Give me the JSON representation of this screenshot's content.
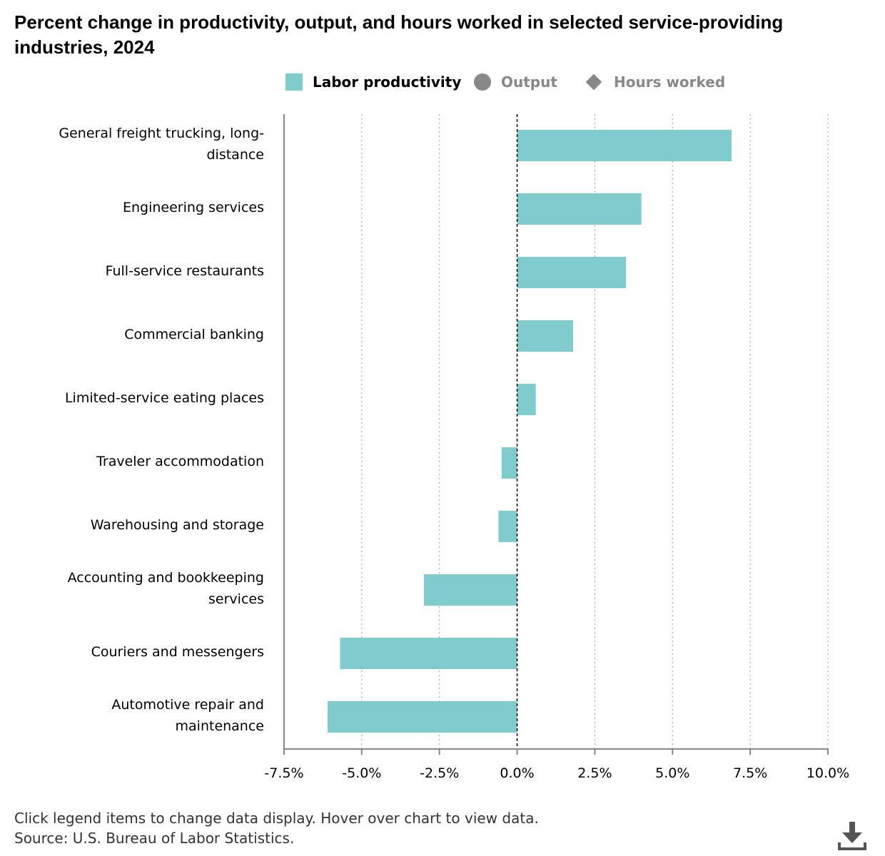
{
  "title": "Percent change in productivity, output, and hours worked in selected service-providing industries, 2024",
  "legend": [
    {
      "label": "Labor productivity",
      "icon": "square",
      "color": "#80cccc",
      "active": true
    },
    {
      "label": "Output",
      "icon": "circle",
      "color": "#888888",
      "active": false
    },
    {
      "label": "Hours worked",
      "icon": "diamond",
      "color": "#888888",
      "active": false
    }
  ],
  "chart_data": {
    "type": "bar",
    "orientation": "horizontal",
    "title": "Percent change in productivity, output, and hours worked in selected service-providing industries, 2024",
    "categories": [
      "General freight trucking, long-distance",
      "Engineering services",
      "Full-service restaurants",
      "Commercial banking",
      "Limited-service eating places",
      "Traveler accommodation",
      "Warehousing and storage",
      "Accounting and bookkeeping services",
      "Couriers and messengers",
      "Automotive repair and maintenance"
    ],
    "category_lines": [
      [
        "General freight trucking, long-",
        "distance"
      ],
      [
        "Engineering services"
      ],
      [
        "Full-service restaurants"
      ],
      [
        "Commercial banking"
      ],
      [
        "Limited-service eating places"
      ],
      [
        "Traveler accommodation"
      ],
      [
        "Warehousing and storage"
      ],
      [
        "Accounting and bookkeeping",
        "services"
      ],
      [
        "Couriers and messengers"
      ],
      [
        "Automotive repair and",
        "maintenance"
      ]
    ],
    "series": [
      {
        "name": "Labor productivity",
        "color": "#80cccc",
        "values": [
          6.9,
          4.0,
          3.5,
          1.8,
          0.6,
          -0.5,
          -0.6,
          -3.0,
          -5.7,
          -6.1
        ]
      }
    ],
    "xlim": [
      -7.5,
      10.0
    ],
    "xticks": [
      -7.5,
      -5.0,
      -2.5,
      0.0,
      2.5,
      5.0,
      7.5,
      10.0
    ],
    "xtick_labels": [
      "-7.5%",
      "-5.0%",
      "-2.5%",
      "0.0%",
      "2.5%",
      "5.0%",
      "7.5%",
      "10.0%"
    ],
    "grid": true,
    "zero_line": "dashed",
    "xlabel": "",
    "ylabel": ""
  },
  "footer": {
    "note": "Click legend items to change data display. Hover over chart to view data.",
    "source": "Source: U.S. Bureau of Labor Statistics."
  },
  "icons": {
    "download": "download-icon"
  }
}
